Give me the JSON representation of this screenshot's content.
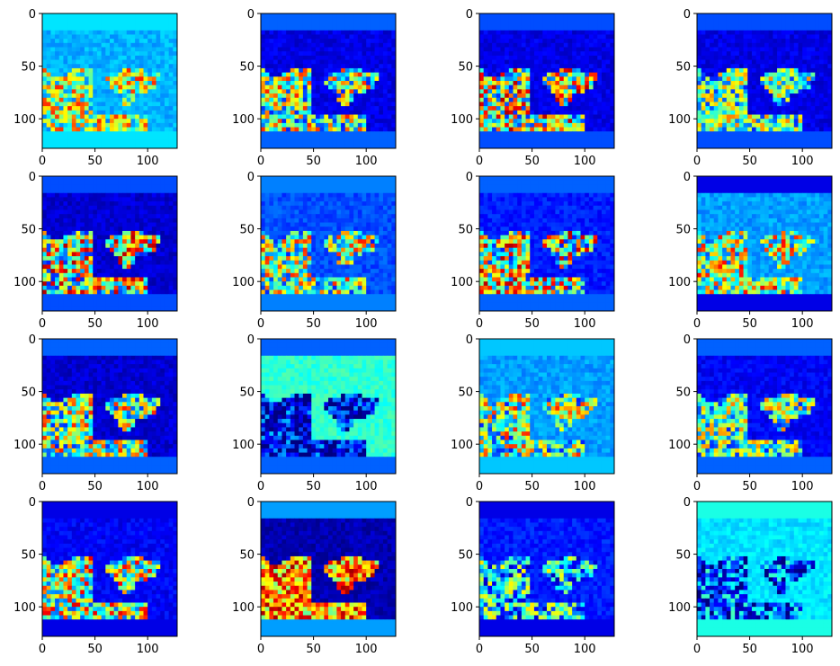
{
  "chart_data": {
    "type": "heatmap",
    "colormap": "jet",
    "grid": false,
    "image_size": [
      128,
      128
    ],
    "panels": 16,
    "layout": "4x4",
    "x_ticks": [
      0,
      50,
      100
    ],
    "y_ticks": [
      0,
      50,
      100
    ],
    "x_tick_labels": [
      "0",
      "50",
      "100"
    ],
    "y_tick_labels": [
      "0",
      "50",
      "100"
    ],
    "xlim": [
      0,
      128
    ],
    "ylim": [
      128,
      0
    ],
    "scenes": [
      {
        "bg": 0.3,
        "strip": 0.35,
        "fg": 0.55,
        "contrast": 0.6,
        "seed": 1
      },
      {
        "bg": 0.1,
        "strip": 0.22,
        "fg": 0.5,
        "contrast": 0.7,
        "seed": 2
      },
      {
        "bg": 0.1,
        "strip": 0.2,
        "fg": 0.55,
        "contrast": 0.8,
        "seed": 3
      },
      {
        "bg": 0.1,
        "strip": 0.2,
        "fg": 0.45,
        "contrast": 0.6,
        "seed": 4
      },
      {
        "bg": 0.08,
        "strip": 0.2,
        "fg": 0.55,
        "contrast": 0.8,
        "seed": 5
      },
      {
        "bg": 0.2,
        "strip": 0.25,
        "fg": 0.5,
        "contrast": 0.7,
        "seed": 6
      },
      {
        "bg": 0.15,
        "strip": 0.22,
        "fg": 0.55,
        "contrast": 0.8,
        "seed": 7
      },
      {
        "bg": 0.28,
        "strip": 0.1,
        "fg": 0.55,
        "contrast": 0.7,
        "seed": 8
      },
      {
        "bg": 0.08,
        "strip": 0.22,
        "fg": 0.5,
        "contrast": 0.7,
        "seed": 9
      },
      {
        "bg": 0.42,
        "strip": 0.22,
        "fg": 0.12,
        "contrast": 0.4,
        "seed": 10
      },
      {
        "bg": 0.28,
        "strip": 0.32,
        "fg": 0.5,
        "contrast": 0.7,
        "seed": 11
      },
      {
        "bg": 0.12,
        "strip": 0.22,
        "fg": 0.45,
        "contrast": 0.6,
        "seed": 12
      },
      {
        "bg": 0.12,
        "strip": 0.1,
        "fg": 0.55,
        "contrast": 0.7,
        "seed": 13
      },
      {
        "bg": 0.05,
        "strip": 0.28,
        "fg": 0.72,
        "contrast": 0.5,
        "seed": 14
      },
      {
        "bg": 0.15,
        "strip": 0.1,
        "fg": 0.35,
        "contrast": 0.6,
        "seed": 15
      },
      {
        "bg": 0.35,
        "strip": 0.4,
        "fg": 0.2,
        "contrast": 0.5,
        "seed": 16
      }
    ]
  }
}
